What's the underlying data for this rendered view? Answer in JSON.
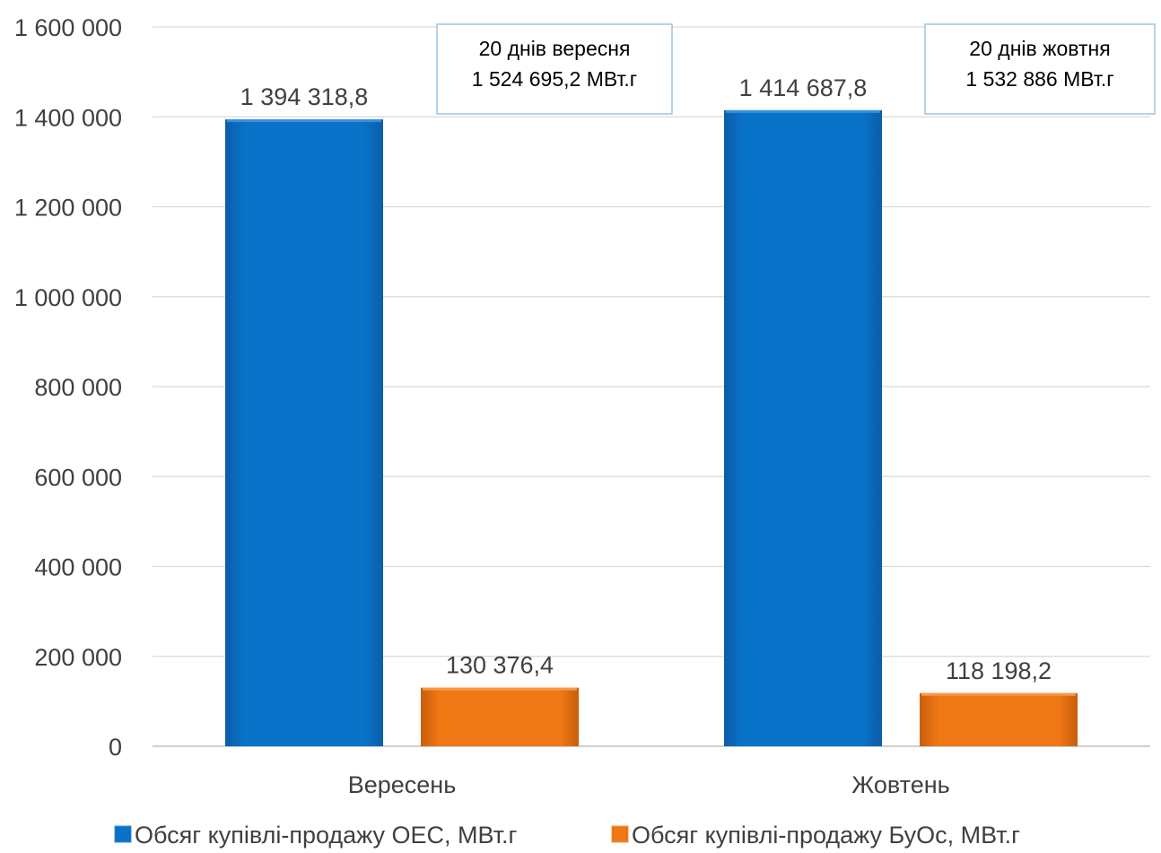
{
  "chart_data": {
    "type": "bar",
    "categories": [
      "Вересень",
      "Жовтень"
    ],
    "series": [
      {
        "name": "Обсяг купівлі-продажу ОЕС, МВт.г",
        "values": [
          1394318.8,
          1414687.8
        ],
        "labels": [
          "1 394 318,8",
          "1 414 687,8"
        ],
        "color": "#0070c0"
      },
      {
        "name": "Обсяг купівлі-продажу БуОс, МВт.г",
        "values": [
          130376.4,
          118198.2
        ],
        "labels": [
          "130 376,4",
          "118 198,2"
        ],
        "color": "#f07814"
      }
    ],
    "ylim": [
      0,
      1600000
    ],
    "yticks": [
      0,
      200000,
      400000,
      600000,
      800000,
      1000000,
      1200000,
      1400000,
      1600000
    ],
    "ytick_labels": [
      "0",
      "200 000",
      "400 000",
      "600 000",
      "800 000",
      "1 000 000",
      "1 200 000",
      "1 400 000",
      "1 600 000"
    ],
    "annotations": [
      {
        "lines": [
          "20 днів вересня",
          "1 524 695,2 МВт.г"
        ]
      },
      {
        "lines": [
          "20 днів жовтня",
          "1 532 886 МВт.г"
        ]
      }
    ],
    "grid": true,
    "legend_position": "bottom"
  }
}
